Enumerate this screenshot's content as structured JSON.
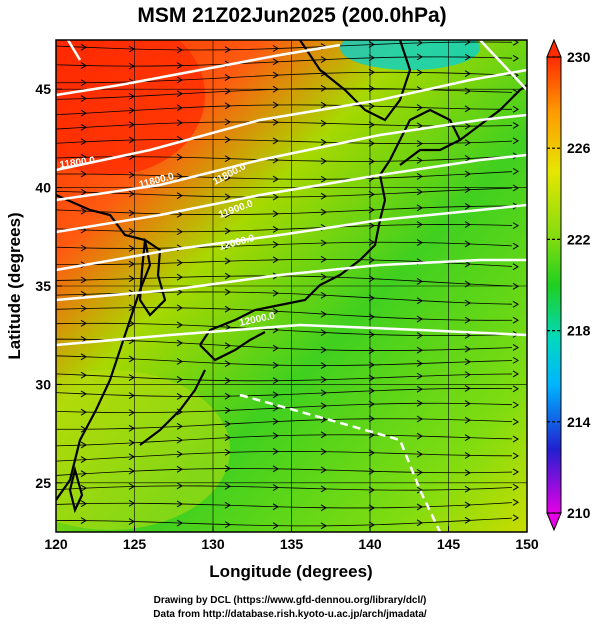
{
  "title": "MSM 21Z02Jun2025 (200.0hPa)",
  "axes": {
    "xlabel": "Longitude (degrees)",
    "ylabel": "Latitude (degrees)",
    "xlim": [
      120,
      150
    ],
    "ylim": [
      22.5,
      47.5
    ],
    "xticks": [
      "120",
      "125",
      "130",
      "135",
      "140",
      "145",
      "150"
    ],
    "yticks": [
      "25",
      "30",
      "35",
      "40",
      "45"
    ]
  },
  "colorbar": {
    "range": [
      210,
      230
    ],
    "ticks": [
      "230",
      "226",
      "222",
      "218",
      "214",
      "210"
    ],
    "colors": [
      "#e600e6",
      "#2020d0",
      "#00b4ff",
      "#00d8c0",
      "#20d020",
      "#80dc10",
      "#e6e600",
      "#ff9a00",
      "#ff2a00"
    ]
  },
  "contour_labels": [
    "11800.0",
    "11800.0",
    "11800.0",
    "11900.0",
    "12000.0",
    "12000.0"
  ],
  "credits": {
    "line1": "Drawing by DCL (https://www.gfd-dennou.org/library/dcl/)",
    "line2": "Data from http://database.rish.kyoto-u.ac.jp/arch/jmadata/"
  }
}
